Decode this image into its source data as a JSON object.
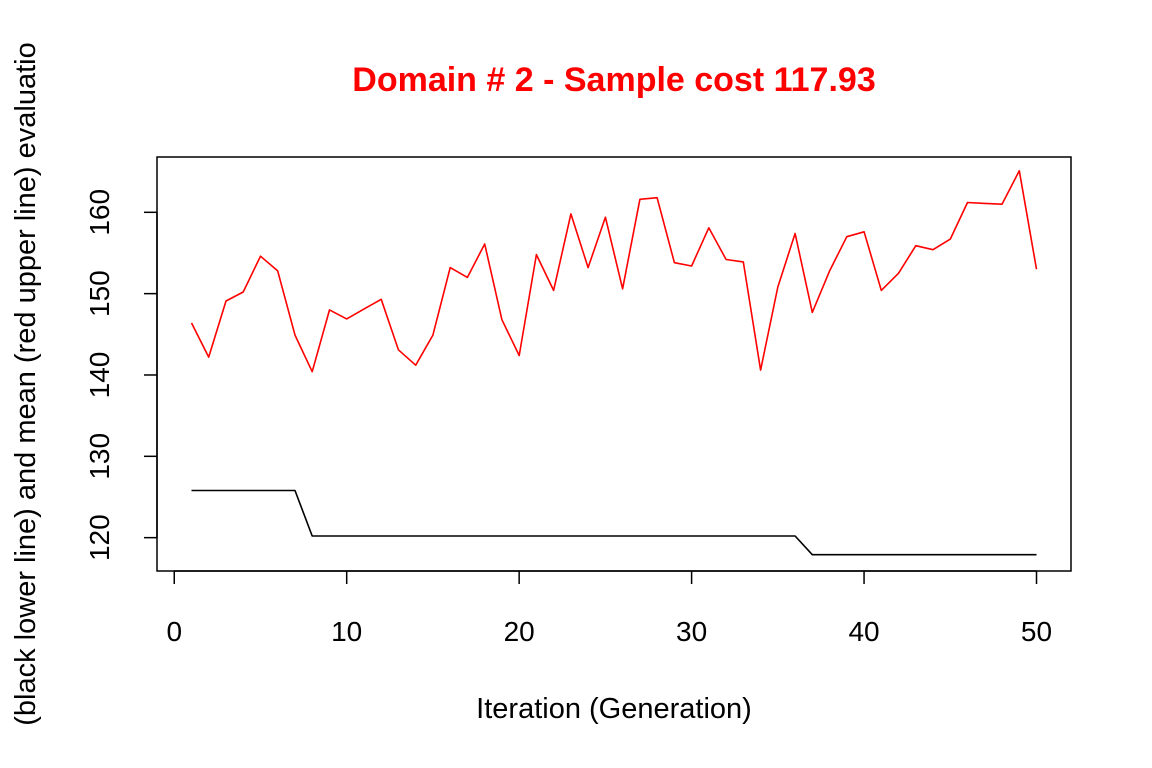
{
  "chart_data": {
    "type": "line",
    "title": "Domain # 2  - Sample cost 117.93",
    "xlabel": "Iteration (Generation)",
    "ylabel": "(black lower line) and mean (red upper line) evaluatio",
    "xlim": [
      -1,
      52
    ],
    "ylim": [
      115.9,
      166.8
    ],
    "xticks": [
      0,
      10,
      20,
      30,
      40,
      50
    ],
    "yticks": [
      120,
      130,
      140,
      150,
      160
    ],
    "x": [
      1,
      2,
      3,
      4,
      5,
      6,
      7,
      8,
      9,
      10,
      11,
      12,
      13,
      14,
      15,
      16,
      17,
      18,
      19,
      20,
      21,
      22,
      23,
      24,
      25,
      26,
      27,
      28,
      29,
      30,
      31,
      32,
      33,
      34,
      35,
      36,
      37,
      38,
      39,
      40,
      41,
      42,
      43,
      44,
      45,
      46,
      47,
      48,
      49,
      50
    ],
    "series": [
      {
        "color": "#ff0000",
        "values": [
          146.4,
          142.2,
          149.1,
          150.2,
          154.6,
          152.8,
          144.9,
          140.4,
          148.0,
          146.9,
          148.1,
          149.3,
          143.1,
          141.2,
          144.9,
          153.2,
          152.0,
          156.1,
          146.8,
          142.4,
          154.8,
          150.4,
          159.8,
          153.2,
          159.4,
          150.6,
          161.6,
          161.8,
          153.8,
          153.4,
          158.1,
          154.2,
          153.9,
          140.6,
          150.8,
          157.4,
          147.7,
          152.8,
          157.0,
          157.6,
          150.4,
          152.5,
          155.9,
          155.4,
          156.7,
          161.2,
          161.1,
          161.0,
          165.1,
          153.0
        ]
      },
      {
        "color": "#000000",
        "values": [
          125.8,
          125.8,
          125.8,
          125.8,
          125.8,
          125.8,
          125.8,
          120.2,
          120.2,
          120.2,
          120.2,
          120.2,
          120.2,
          120.2,
          120.2,
          120.2,
          120.2,
          120.2,
          120.2,
          120.2,
          120.2,
          120.2,
          120.2,
          120.2,
          120.2,
          120.2,
          120.2,
          120.2,
          120.2,
          120.2,
          120.2,
          120.2,
          120.2,
          120.2,
          120.2,
          120.2,
          117.9,
          117.9,
          117.9,
          117.9,
          117.9,
          117.9,
          117.9,
          117.9,
          117.9,
          117.9,
          117.9,
          117.9,
          117.9,
          117.9
        ]
      }
    ],
    "grid": false,
    "legend": "none"
  }
}
